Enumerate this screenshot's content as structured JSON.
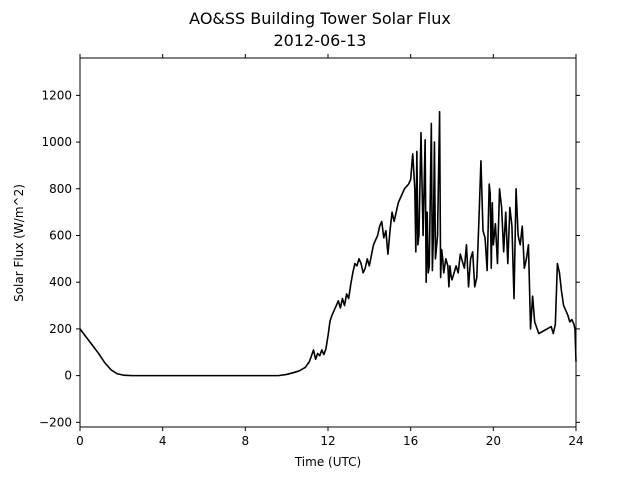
{
  "chart_data": {
    "type": "line",
    "title": "AO&SS Building Tower Solar Flux",
    "subtitle": "2012-06-13",
    "xlabel": "Time (UTC)",
    "ylabel": "Solar Flux (W/m^2)",
    "xlim": [
      0,
      24
    ],
    "ylim": [
      -220,
      1360
    ],
    "xticks": [
      0,
      4,
      8,
      12,
      16,
      20,
      24
    ],
    "yticks": [
      -200,
      0,
      200,
      400,
      600,
      800,
      1000,
      1200
    ],
    "grid": false,
    "series": [
      {
        "color": "#000000",
        "x": [
          0,
          0.3,
          0.6,
          0.9,
          1.2,
          1.5,
          1.8,
          2.1,
          2.5,
          3,
          4,
          6,
          8,
          9,
          9.6,
          10,
          10.3,
          10.6,
          10.9,
          11.1,
          11.3,
          11.4,
          11.5,
          11.6,
          11.7,
          11.8,
          11.9,
          12.0,
          12.1,
          12.2,
          12.3,
          12.4,
          12.5,
          12.6,
          12.7,
          12.8,
          12.9,
          13.0,
          13.1,
          13.2,
          13.3,
          13.4,
          13.5,
          13.6,
          13.7,
          13.8,
          13.9,
          14.0,
          14.2,
          14.4,
          14.5,
          14.6,
          14.7,
          14.8,
          14.9,
          15.0,
          15.1,
          15.2,
          15.3,
          15.4,
          15.5,
          15.6,
          15.7,
          15.8,
          15.9,
          16.0,
          16.1,
          16.2,
          16.25,
          16.3,
          16.35,
          16.4,
          16.5,
          16.6,
          16.7,
          16.75,
          16.8,
          16.85,
          16.9,
          17.0,
          17.05,
          17.1,
          17.15,
          17.2,
          17.3,
          17.4,
          17.45,
          17.5,
          17.55,
          17.6,
          17.7,
          17.8,
          17.85,
          17.9,
          17.95,
          18.0,
          18.1,
          18.2,
          18.3,
          18.4,
          18.5,
          18.6,
          18.7,
          18.8,
          18.9,
          19.0,
          19.1,
          19.2,
          19.3,
          19.4,
          19.5,
          19.6,
          19.7,
          19.8,
          19.85,
          19.9,
          19.95,
          20.0,
          20.1,
          20.2,
          20.3,
          20.4,
          20.5,
          20.6,
          20.7,
          20.8,
          20.9,
          21.0,
          21.1,
          21.2,
          21.3,
          21.4,
          21.5,
          21.6,
          21.7,
          21.8,
          21.9,
          22.0,
          22.2,
          22.4,
          22.6,
          22.8,
          22.9,
          23.0,
          23.1,
          23.2,
          23.3,
          23.4,
          23.5,
          23.6,
          23.7,
          23.8,
          23.9,
          23.95,
          24.0
        ],
        "y": [
          200,
          165,
          130,
          95,
          55,
          25,
          8,
          2,
          0,
          0,
          0,
          0,
          0,
          0,
          0,
          5,
          12,
          20,
          35,
          60,
          110,
          70,
          95,
          85,
          110,
          90,
          115,
          170,
          235,
          260,
          280,
          300,
          320,
          290,
          330,
          300,
          350,
          330,
          390,
          440,
          480,
          470,
          500,
          480,
          440,
          460,
          500,
          470,
          560,
          600,
          640,
          660,
          590,
          620,
          520,
          620,
          700,
          660,
          700,
          740,
          760,
          780,
          800,
          810,
          820,
          840,
          950,
          800,
          530,
          960,
          560,
          600,
          1040,
          600,
          1010,
          400,
          700,
          440,
          470,
          1080,
          450,
          600,
          1000,
          500,
          600,
          1130,
          420,
          540,
          500,
          440,
          500,
          470,
          380,
          470,
          430,
          410,
          440,
          470,
          440,
          520,
          490,
          460,
          560,
          380,
          500,
          530,
          380,
          420,
          660,
          920,
          620,
          590,
          450,
          820,
          780,
          460,
          740,
          560,
          650,
          480,
          800,
          720,
          530,
          700,
          480,
          720,
          640,
          330,
          800,
          600,
          560,
          640,
          460,
          500,
          560,
          200,
          340,
          230,
          180,
          190,
          200,
          210,
          180,
          220,
          480,
          440,
          360,
          300,
          280,
          260,
          230,
          240,
          220,
          200,
          60
        ]
      }
    ]
  }
}
